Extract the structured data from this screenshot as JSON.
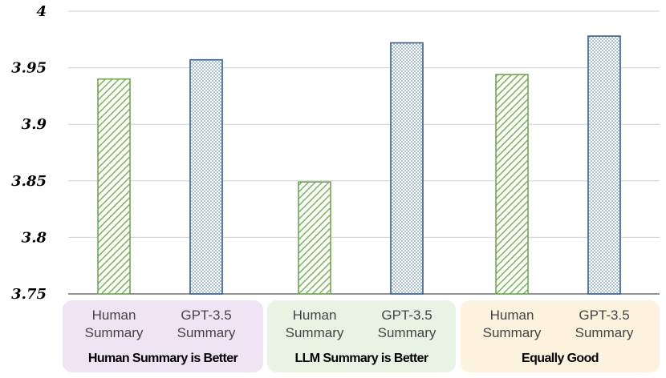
{
  "chart_data": {
    "type": "bar",
    "y_ticks": [
      "3.75",
      "3.8",
      "3.85",
      "3.9",
      "3.95",
      "4"
    ],
    "ylim": [
      3.75,
      4.0
    ],
    "grid": true,
    "groups": [
      {
        "label": "Human Summary is Better",
        "color": "#eee4f4",
        "bars": [
          {
            "label_line1": "Human",
            "label_line2": "Summary",
            "value": 3.94,
            "style": "green-hatch"
          },
          {
            "label_line1": "GPT-3.5",
            "label_line2": "Summary",
            "value": 3.957,
            "style": "blue-dots"
          }
        ]
      },
      {
        "label": "LLM Summary is Better",
        "color": "#e9f3e4",
        "bars": [
          {
            "label_line1": "Human",
            "label_line2": "Summary",
            "value": 3.849,
            "style": "green-hatch"
          },
          {
            "label_line1": "GPT-3.5",
            "label_line2": "Summary",
            "value": 3.972,
            "style": "blue-dots"
          }
        ]
      },
      {
        "label": "Equally Good",
        "color": "#fcf2dd",
        "bars": [
          {
            "label_line1": "Human",
            "label_line2": "Summary",
            "value": 3.944,
            "style": "green-hatch"
          },
          {
            "label_line1": "GPT-3.5",
            "label_line2": "Summary",
            "value": 3.978,
            "style": "blue-dots"
          }
        ]
      }
    ],
    "colors": {
      "green": "#6aa84f",
      "blue": "#2f5f8f",
      "grid": "#d0d0d0",
      "axis": "#555555"
    }
  }
}
